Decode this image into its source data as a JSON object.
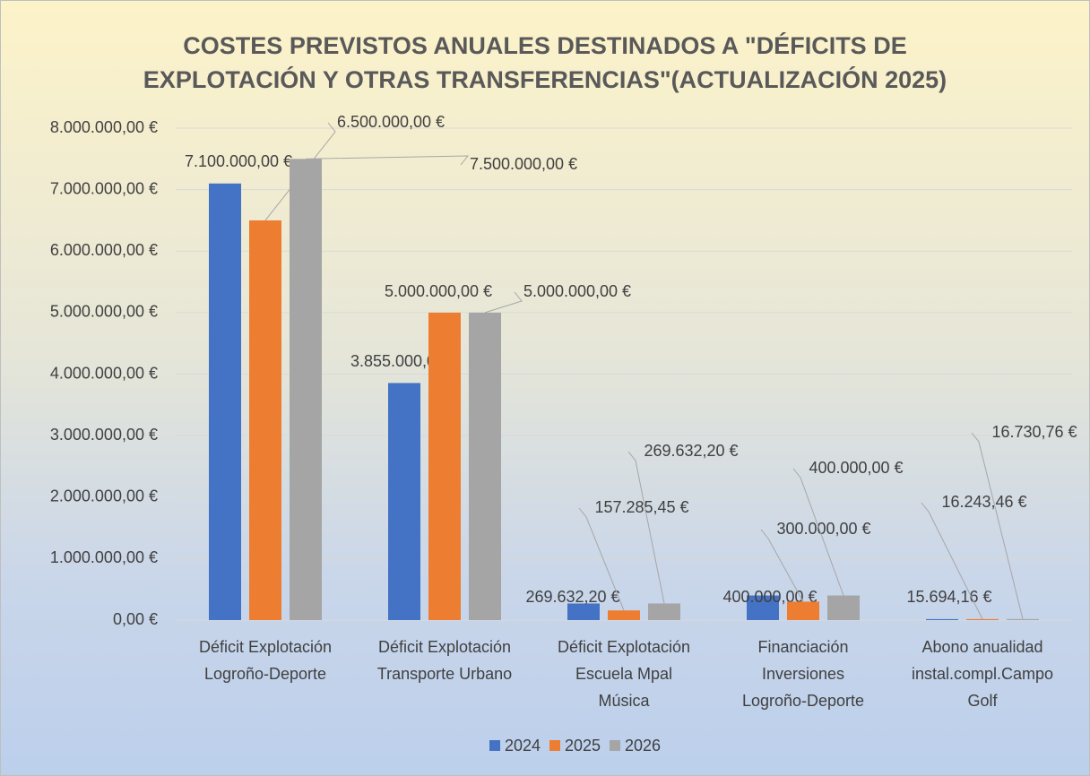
{
  "chart_data": {
    "type": "bar",
    "title": [
      "COSTES PREVISTOS ANUALES DESTINADOS A \"DÉFICITS DE",
      "EXPLOTACIÓN Y OTRAS TRANSFERENCIAS\"(ACTUALIZACIÓN 2025)"
    ],
    "categories": [
      [
        "Déficit Explotación",
        "Logroño-Deporte"
      ],
      [
        "Déficit Explotación",
        "Transporte Urbano"
      ],
      [
        "Déficit Explotación",
        "Escuela Mpal",
        "Música"
      ],
      [
        "Financiación",
        "Inversiones",
        "Logroño-Deporte"
      ],
      [
        "Abono anualidad",
        "instal.compl.Campo",
        "Golf"
      ]
    ],
    "series": [
      {
        "name": "2024",
        "color": "#4472c4",
        "values": [
          7100000,
          3855000,
          269632.2,
          400000,
          15694.16
        ],
        "value_labels": [
          "7.100.000,00 €",
          "3.855.000,00 €",
          "269.632,20 €",
          "400.000,00 €",
          "15.694,16 €"
        ]
      },
      {
        "name": "2025",
        "color": "#ed7d31",
        "values": [
          6500000,
          5000000,
          157285.45,
          300000,
          16243.46
        ],
        "value_labels": [
          "6.500.000,00 €",
          "5.000.000,00 €",
          "157.285,45 €",
          "300.000,00 €",
          "16.243,46 €"
        ]
      },
      {
        "name": "2026",
        "color": "#a5a5a5",
        "values": [
          7500000,
          5000000,
          269632.2,
          400000,
          16730.76
        ],
        "value_labels": [
          "7.500.000,00 €",
          "5.000.000,00 €",
          "269.632,20 €",
          "400.000,00 €",
          "16.730,76 €"
        ]
      }
    ],
    "ylim": [
      0,
      8000000
    ],
    "yticks": [
      {
        "value": 0,
        "label": "0,00 €"
      },
      {
        "value": 1000000,
        "label": "1.000.000,00 €"
      },
      {
        "value": 2000000,
        "label": "2.000.000,00 €"
      },
      {
        "value": 3000000,
        "label": "3.000.000,00 €"
      },
      {
        "value": 4000000,
        "label": "4.000.000,00 €"
      },
      {
        "value": 5000000,
        "label": "5.000.000,00 €"
      },
      {
        "value": 6000000,
        "label": "6.000.000,00 €"
      },
      {
        "value": 7000000,
        "label": "7.000.000,00 €"
      },
      {
        "value": 8000000,
        "label": "8.000.000,00 €"
      }
    ],
    "grid": true,
    "legend": "bottom"
  }
}
